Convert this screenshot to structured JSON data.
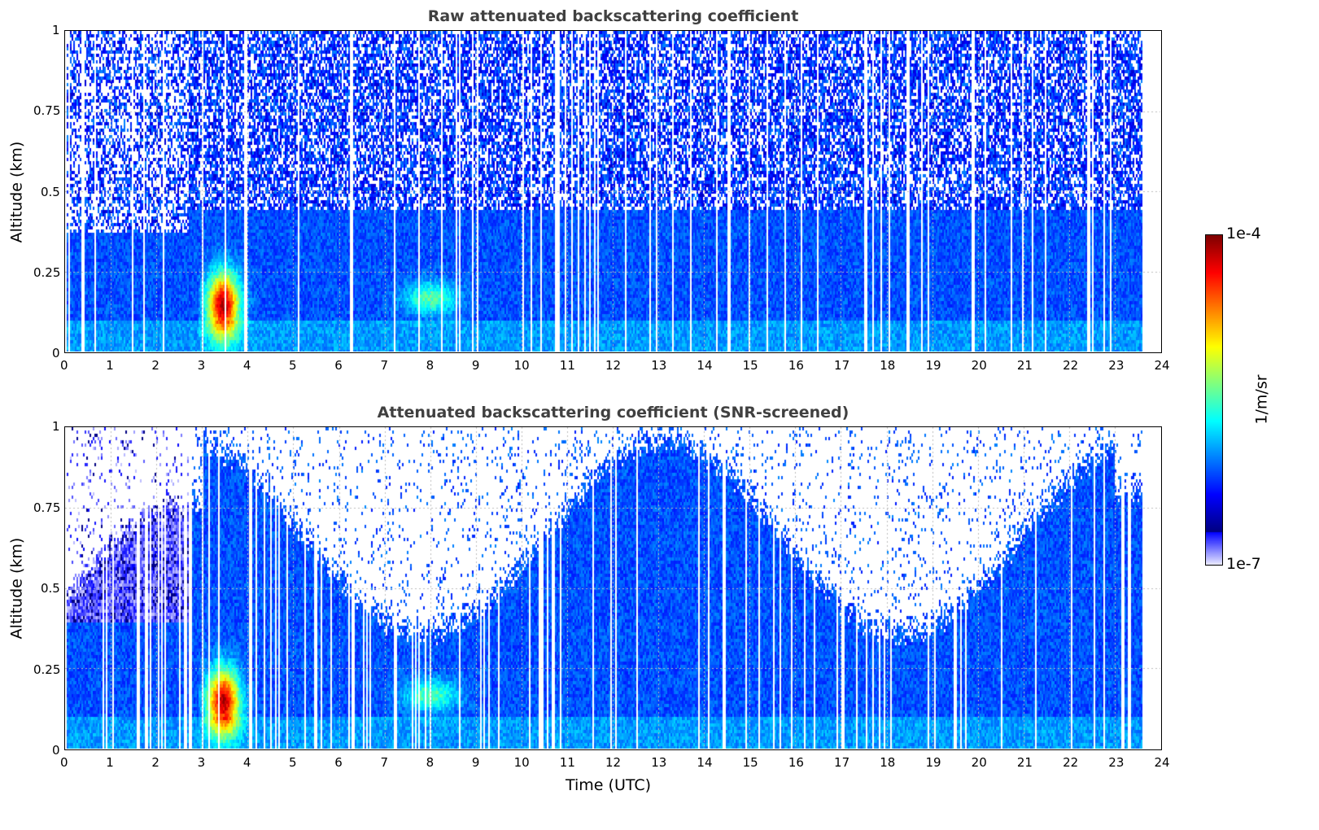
{
  "chart_data": [
    {
      "type": "heatmap",
      "title": "Raw attenuated backscattering coefficient",
      "xlabel": "",
      "ylabel": "Altitude (km)",
      "xlim": [
        0,
        24
      ],
      "ylim": [
        0,
        1
      ],
      "xticks": [
        "0",
        "1",
        "2",
        "3",
        "4",
        "5",
        "6",
        "7",
        "8",
        "9",
        "10",
        "11",
        "12",
        "13",
        "14",
        "15",
        "16",
        "17",
        "18",
        "19",
        "20",
        "21",
        "22",
        "23",
        "24"
      ],
      "yticks": [
        "0",
        "0.25",
        "0.5",
        "0.75",
        "1"
      ],
      "data_end_hour": 23.6,
      "grid": true,
      "features": {
        "aerosol_plume": {
          "time_range": [
            2.9,
            4.1
          ],
          "altitude_range": [
            0,
            0.28
          ],
          "peak_log10": -4.5
        },
        "boundary_layer_top_km": 0.4,
        "weak_layer": {
          "time_range": [
            7.3,
            8.6
          ],
          "altitude_km": 0.17
        }
      }
    },
    {
      "type": "heatmap",
      "title": "Attenuated backscattering coefficient (SNR-screened)",
      "xlabel": "Time (UTC)",
      "ylabel": "Altitude (km)",
      "xlim": [
        0,
        24
      ],
      "ylim": [
        0,
        1
      ],
      "xticks": [
        "0",
        "1",
        "2",
        "3",
        "4",
        "5",
        "6",
        "7",
        "8",
        "9",
        "10",
        "11",
        "12",
        "13",
        "14",
        "15",
        "16",
        "17",
        "18",
        "19",
        "20",
        "21",
        "22",
        "23",
        "24"
      ],
      "yticks": [
        "0",
        "0.25",
        "0.5",
        "0.75",
        "1"
      ],
      "data_end_hour": 23.6,
      "grid": true
    }
  ],
  "colorbar": {
    "label": "1/m/sr",
    "max_label": "1e-4",
    "min_label": "1e-7",
    "range_log10": [
      -7,
      -4
    ],
    "colormap": "jet"
  }
}
